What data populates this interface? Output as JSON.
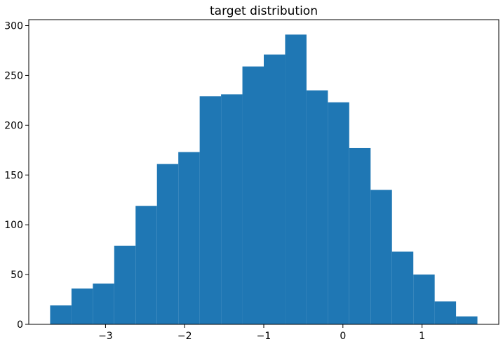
{
  "chart_data": {
    "type": "bar",
    "subtype": "histogram",
    "title": "target distribution",
    "xlabel": "",
    "ylabel": "",
    "bin_edges": [
      -3.7,
      -3.43,
      -3.16,
      -2.89,
      -2.62,
      -2.35,
      -2.08,
      -1.81,
      -1.54,
      -1.27,
      -1.0,
      -0.73,
      -0.46,
      -0.19,
      0.08,
      0.35,
      0.62,
      0.89,
      1.16,
      1.43,
      1.7
    ],
    "values": [
      19,
      36,
      41,
      79,
      119,
      161,
      173,
      229,
      231,
      259,
      271,
      291,
      235,
      223,
      177,
      135,
      73,
      50,
      23,
      8
    ],
    "xlim": [
      -3.97,
      1.97
    ],
    "ylim": [
      0,
      306
    ],
    "xticks": [
      -3,
      -2,
      -1,
      0,
      1
    ],
    "xtick_labels": [
      "−3",
      "−2",
      "−1",
      "0",
      "1"
    ],
    "yticks": [
      0,
      50,
      100,
      150,
      200,
      250,
      300
    ],
    "ytick_labels": [
      "0",
      "50",
      "100",
      "150",
      "200",
      "250",
      "300"
    ],
    "grid": false,
    "legend": "none",
    "bar_color": "#1f77b4"
  }
}
